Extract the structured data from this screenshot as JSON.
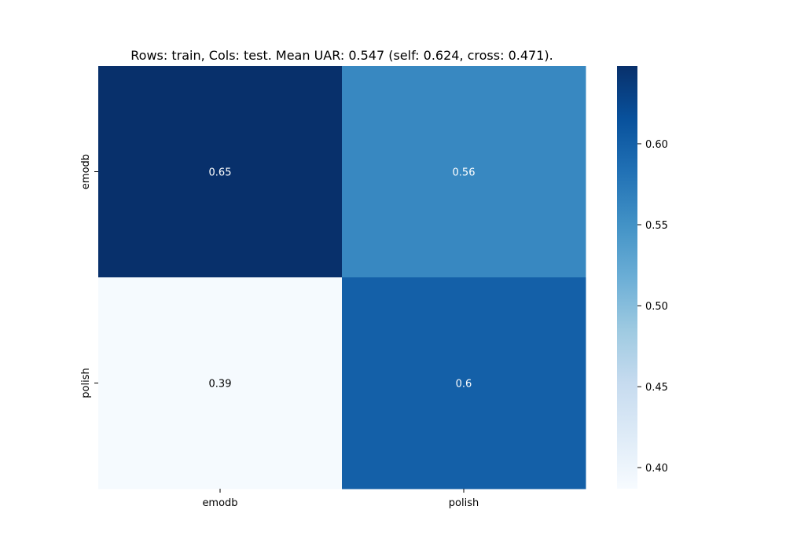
{
  "chart_data": {
    "type": "heatmap",
    "title": "Rows: train, Cols: test. Mean UAR: 0.547 (self: 0.624, cross: 0.471).",
    "xlabel": "",
    "ylabel": "",
    "rows": [
      "emodb",
      "polish"
    ],
    "cols": [
      "emodb",
      "polish"
    ],
    "values": [
      [
        0.65,
        0.56
      ],
      [
        0.39,
        0.6
      ]
    ],
    "annotations": [
      [
        "0.65",
        "0.56"
      ],
      [
        "0.39",
        "0.6"
      ]
    ],
    "colormap": "Blues",
    "colorbar": {
      "range": [
        0.387,
        0.648
      ],
      "ticks": [
        0.4,
        0.45,
        0.5,
        0.55,
        0.6
      ],
      "tick_labels": [
        "0.40",
        "0.45",
        "0.50",
        "0.55",
        "0.60"
      ]
    },
    "grid": false
  },
  "colors": {
    "text_dark": "#000000",
    "text_light": "#ffffff"
  }
}
